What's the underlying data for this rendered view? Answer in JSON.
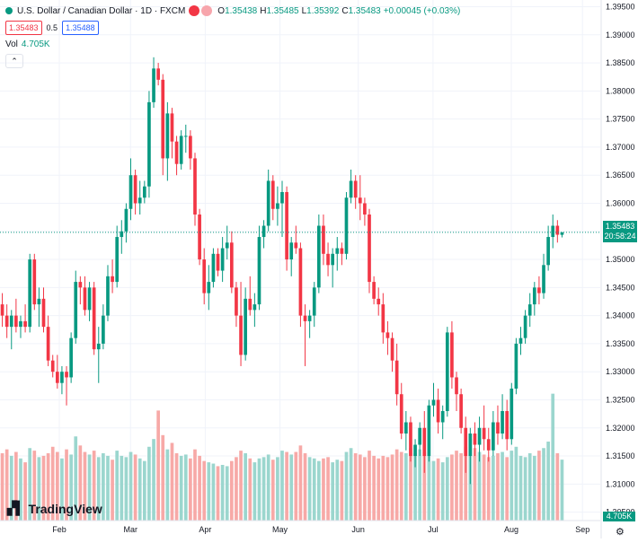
{
  "legend": {
    "title": "U.S. Dollar / Canadian Dollar · 1D · FXCM",
    "o_label": "O",
    "o_value": "1.35438",
    "h_label": "H",
    "h_value": "1.35485",
    "l_label": "L",
    "l_value": "1.35392",
    "c_label": "C",
    "c_value": "1.35483",
    "change": "+0.00045 (+0.03%)",
    "sell_price": "1.35483",
    "spread": "0.5",
    "buy_price": "1.35488",
    "vol_label": "Vol",
    "vol_value": "4.705K"
  },
  "last_price_tag": {
    "price": "1.35483",
    "countdown": "20:58:24"
  },
  "volume_tag": "4.705K",
  "logo_text": "TradingView",
  "colors": {
    "up": "#089981",
    "down": "#f23645",
    "up_vol": "#9bd6ce",
    "down_vol": "#f7a9a7",
    "grid": "#f0f3fa",
    "axis_text": "#131722"
  },
  "chart_data": {
    "type": "candlestick",
    "title": "U.S. Dollar / Canadian Dollar · 1D · FXCM",
    "y_ticks": [
      "1.30500",
      "1.31000",
      "1.31500",
      "1.32000",
      "1.32500",
      "1.33000",
      "1.33500",
      "1.34000",
      "1.34500",
      "1.35000",
      "1.35500",
      "1.36000",
      "1.36500",
      "1.37000",
      "1.37500",
      "1.38000",
      "1.38500",
      "1.39000",
      "1.39500"
    ],
    "ylim": [
      1.3035,
      1.3962
    ],
    "x_ticks": [
      "Feb",
      "Mar",
      "Apr",
      "May",
      "Jun",
      "Jul",
      "Aug",
      "Sep"
    ],
    "grid": true,
    "last_price": 1.35483,
    "volume_last": "4.705K",
    "candles": [
      [
        1.342,
        1.344,
        1.338,
        1.34,
        5.2
      ],
      [
        1.34,
        1.342,
        1.336,
        1.338,
        5.5
      ],
      [
        1.338,
        1.341,
        1.334,
        1.34,
        5.0
      ],
      [
        1.34,
        1.343,
        1.337,
        1.338,
        5.3
      ],
      [
        1.338,
        1.34,
        1.336,
        1.339,
        4.8
      ],
      [
        1.339,
        1.342,
        1.337,
        1.338,
        4.5
      ],
      [
        1.338,
        1.351,
        1.337,
        1.35,
        5.6
      ],
      [
        1.35,
        1.351,
        1.341,
        1.342,
        5.4
      ],
      [
        1.342,
        1.345,
        1.338,
        1.343,
        4.9
      ],
      [
        1.343,
        1.345,
        1.337,
        1.338,
        5.0
      ],
      [
        1.338,
        1.34,
        1.331,
        1.332,
        5.2
      ],
      [
        1.332,
        1.333,
        1.329,
        1.33,
        5.7
      ],
      [
        1.33,
        1.333,
        1.327,
        1.328,
        5.3
      ],
      [
        1.328,
        1.331,
        1.326,
        1.33,
        4.8
      ],
      [
        1.33,
        1.331,
        1.324,
        1.329,
        5.5
      ],
      [
        1.329,
        1.337,
        1.328,
        1.336,
        5.1
      ],
      [
        1.336,
        1.348,
        1.335,
        1.346,
        6.5
      ],
      [
        1.346,
        1.347,
        1.342,
        1.345,
        5.8
      ],
      [
        1.345,
        1.347,
        1.34,
        1.341,
        5.3
      ],
      [
        1.341,
        1.346,
        1.339,
        1.345,
        5.1
      ],
      [
        1.345,
        1.346,
        1.333,
        1.334,
        5.4
      ],
      [
        1.334,
        1.338,
        1.328,
        1.335,
        4.9
      ],
      [
        1.335,
        1.342,
        1.334,
        1.34,
        5.2
      ],
      [
        1.34,
        1.349,
        1.339,
        1.347,
        5.0
      ],
      [
        1.347,
        1.35,
        1.344,
        1.346,
        4.7
      ],
      [
        1.346,
        1.356,
        1.345,
        1.354,
        5.4
      ],
      [
        1.354,
        1.357,
        1.351,
        1.355,
        5.0
      ],
      [
        1.355,
        1.36,
        1.353,
        1.359,
        4.9
      ],
      [
        1.359,
        1.368,
        1.357,
        1.365,
        5.3
      ],
      [
        1.365,
        1.366,
        1.358,
        1.36,
        5.1
      ],
      [
        1.36,
        1.364,
        1.358,
        1.361,
        4.8
      ],
      [
        1.361,
        1.364,
        1.36,
        1.363,
        4.6
      ],
      [
        1.363,
        1.38,
        1.361,
        1.378,
        5.7
      ],
      [
        1.378,
        1.386,
        1.377,
        1.384,
        6.3
      ],
      [
        1.384,
        1.385,
        1.381,
        1.382,
        8.5
      ],
      [
        1.382,
        1.383,
        1.365,
        1.368,
        6.6
      ],
      [
        1.368,
        1.378,
        1.364,
        1.376,
        5.5
      ],
      [
        1.376,
        1.377,
        1.368,
        1.371,
        6.0
      ],
      [
        1.371,
        1.372,
        1.365,
        1.367,
        5.2
      ],
      [
        1.367,
        1.373,
        1.366,
        1.372,
        5.0
      ],
      [
        1.372,
        1.374,
        1.369,
        1.372,
        5.1
      ],
      [
        1.372,
        1.373,
        1.366,
        1.368,
        4.8
      ],
      [
        1.368,
        1.369,
        1.356,
        1.358,
        5.5
      ],
      [
        1.358,
        1.359,
        1.349,
        1.35,
        5.0
      ],
      [
        1.35,
        1.352,
        1.342,
        1.344,
        4.6
      ],
      [
        1.344,
        1.349,
        1.341,
        1.346,
        4.5
      ],
      [
        1.346,
        1.352,
        1.345,
        1.351,
        4.4
      ],
      [
        1.351,
        1.352,
        1.347,
        1.348,
        4.2
      ],
      [
        1.348,
        1.354,
        1.346,
        1.352,
        4.3
      ],
      [
        1.352,
        1.356,
        1.35,
        1.353,
        4.2
      ],
      [
        1.353,
        1.355,
        1.344,
        1.345,
        4.6
      ],
      [
        1.345,
        1.346,
        1.338,
        1.34,
        4.9
      ],
      [
        1.34,
        1.346,
        1.331,
        1.333,
        5.4
      ],
      [
        1.333,
        1.345,
        1.332,
        1.343,
        5.2
      ],
      [
        1.343,
        1.347,
        1.34,
        1.341,
        4.8
      ],
      [
        1.341,
        1.344,
        1.338,
        1.342,
        4.5
      ],
      [
        1.342,
        1.356,
        1.341,
        1.354,
        4.8
      ],
      [
        1.354,
        1.357,
        1.352,
        1.356,
        4.9
      ],
      [
        1.356,
        1.366,
        1.355,
        1.364,
        5.1
      ],
      [
        1.364,
        1.365,
        1.357,
        1.359,
        4.7
      ],
      [
        1.359,
        1.363,
        1.356,
        1.36,
        4.9
      ],
      [
        1.36,
        1.364,
        1.354,
        1.362,
        5.4
      ],
      [
        1.362,
        1.363,
        1.348,
        1.35,
        5.3
      ],
      [
        1.35,
        1.354,
        1.347,
        1.353,
        5.1
      ],
      [
        1.353,
        1.356,
        1.351,
        1.352,
        5.3
      ],
      [
        1.352,
        1.353,
        1.338,
        1.34,
        5.8
      ],
      [
        1.34,
        1.342,
        1.331,
        1.339,
        5.2
      ],
      [
        1.339,
        1.341,
        1.336,
        1.34,
        4.9
      ],
      [
        1.34,
        1.346,
        1.338,
        1.345,
        4.8
      ],
      [
        1.345,
        1.358,
        1.344,
        1.356,
        4.6
      ],
      [
        1.356,
        1.358,
        1.349,
        1.351,
        4.8
      ],
      [
        1.351,
        1.353,
        1.347,
        1.349,
        4.9
      ],
      [
        1.349,
        1.352,
        1.345,
        1.351,
        4.5
      ],
      [
        1.351,
        1.354,
        1.348,
        1.352,
        4.7
      ],
      [
        1.352,
        1.353,
        1.349,
        1.351,
        4.6
      ],
      [
        1.351,
        1.362,
        1.35,
        1.361,
        5.3
      ],
      [
        1.361,
        1.366,
        1.36,
        1.364,
        5.6
      ],
      [
        1.364,
        1.365,
        1.359,
        1.361,
        5.2
      ],
      [
        1.361,
        1.365,
        1.357,
        1.36,
        5.1
      ],
      [
        1.36,
        1.361,
        1.356,
        1.358,
        4.9
      ],
      [
        1.358,
        1.359,
        1.344,
        1.346,
        5.4
      ],
      [
        1.346,
        1.347,
        1.342,
        1.343,
        5.0
      ],
      [
        1.343,
        1.345,
        1.34,
        1.342,
        4.8
      ],
      [
        1.342,
        1.344,
        1.335,
        1.337,
        5.0
      ],
      [
        1.337,
        1.339,
        1.333,
        1.336,
        4.9
      ],
      [
        1.336,
        1.337,
        1.33,
        1.332,
        5.1
      ],
      [
        1.332,
        1.335,
        1.324,
        1.326,
        5.5
      ],
      [
        1.326,
        1.328,
        1.318,
        1.319,
        5.3
      ],
      [
        1.319,
        1.323,
        1.316,
        1.321,
        5.2
      ],
      [
        1.321,
        1.322,
        1.314,
        1.315,
        5.6
      ],
      [
        1.315,
        1.318,
        1.313,
        1.317,
        5.2
      ],
      [
        1.317,
        1.321,
        1.315,
        1.32,
        5.5
      ],
      [
        1.32,
        1.323,
        1.312,
        1.315,
        5.3
      ],
      [
        1.315,
        1.325,
        1.314,
        1.324,
        5.0
      ],
      [
        1.324,
        1.328,
        1.322,
        1.325,
        4.6
      ],
      [
        1.325,
        1.327,
        1.319,
        1.321,
        4.8
      ],
      [
        1.321,
        1.324,
        1.318,
        1.323,
        4.5
      ],
      [
        1.323,
        1.338,
        1.322,
        1.337,
        4.9
      ],
      [
        1.337,
        1.339,
        1.327,
        1.329,
        5.1
      ],
      [
        1.329,
        1.33,
        1.323,
        1.326,
        5.4
      ],
      [
        1.326,
        1.327,
        1.319,
        1.32,
        5.2
      ],
      [
        1.32,
        1.322,
        1.312,
        1.315,
        5.7
      ],
      [
        1.315,
        1.32,
        1.31,
        1.319,
        6.3
      ],
      [
        1.319,
        1.321,
        1.315,
        1.317,
        5.6
      ],
      [
        1.317,
        1.322,
        1.314,
        1.32,
        5.3
      ],
      [
        1.32,
        1.324,
        1.316,
        1.318,
        5.1
      ],
      [
        1.318,
        1.32,
        1.314,
        1.316,
        4.9
      ],
      [
        1.316,
        1.323,
        1.315,
        1.321,
        5.0
      ],
      [
        1.321,
        1.324,
        1.317,
        1.319,
        5.2
      ],
      [
        1.319,
        1.326,
        1.318,
        1.323,
        5.3
      ],
      [
        1.323,
        1.325,
        1.316,
        1.318,
        4.9
      ],
      [
        1.318,
        1.328,
        1.317,
        1.327,
        5.4
      ],
      [
        1.327,
        1.336,
        1.326,
        1.335,
        5.7
      ],
      [
        1.335,
        1.338,
        1.333,
        1.336,
        5.0
      ],
      [
        1.336,
        1.341,
        1.335,
        1.34,
        4.9
      ],
      [
        1.34,
        1.344,
        1.338,
        1.342,
        5.2
      ],
      [
        1.342,
        1.346,
        1.34,
        1.345,
        5.0
      ],
      [
        1.345,
        1.347,
        1.342,
        1.344,
        5.4
      ],
      [
        1.344,
        1.351,
        1.343,
        1.349,
        5.6
      ],
      [
        1.349,
        1.356,
        1.348,
        1.354,
        6.1
      ],
      [
        1.354,
        1.358,
        1.352,
        1.356,
        9.8
      ],
      [
        1.356,
        1.357,
        1.353,
        1.3544,
        5.2
      ],
      [
        1.35438,
        1.35485,
        1.35392,
        1.35483,
        4.705
      ]
    ],
    "volume_scale": {
      "max": 10.4
    }
  }
}
